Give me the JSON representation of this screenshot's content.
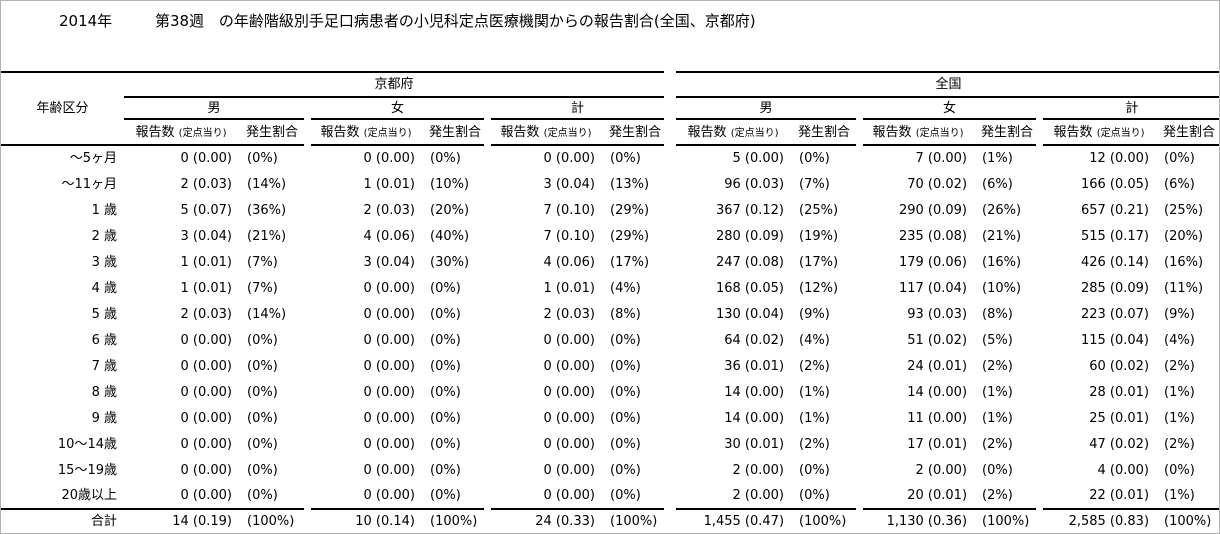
{
  "chart_data": {
    "type": "table",
    "title": "2014年 第38週 の年齢階級別手足口病患者の小児科定点医療機関からの報告割合(全国、京都府)",
    "title_parts": {
      "year": "2014年",
      "week": "第38週",
      "description": "の年齢階級別手足口病患者の小児科定点医療機関からの報告割合(全国、京都府)"
    },
    "age_column_header": "年齢区分",
    "region_headers": [
      "京都府",
      "全国"
    ],
    "gender_headers": [
      "男",
      "女",
      "計"
    ],
    "subcol_count_label": "報告数",
    "subcol_count_note": "(定点当り)",
    "subcol_ratio_label": "発生割合",
    "group_order": [
      "京都府-男",
      "京都府-女",
      "京都府-計",
      "全国-男",
      "全国-女",
      "全国-計"
    ],
    "rows": [
      {
        "age": "～5ヶ月",
        "cells": [
          [
            "0 (0.00)",
            "(0%)"
          ],
          [
            "0 (0.00)",
            "(0%)"
          ],
          [
            "0 (0.00)",
            "(0%)"
          ],
          [
            "5 (0.00)",
            "(0%)"
          ],
          [
            "7 (0.00)",
            "(1%)"
          ],
          [
            "12 (0.00)",
            "(0%)"
          ]
        ]
      },
      {
        "age": "～11ヶ月",
        "cells": [
          [
            "2 (0.03)",
            "(14%)"
          ],
          [
            "1 (0.01)",
            "(10%)"
          ],
          [
            "3 (0.04)",
            "(13%)"
          ],
          [
            "96 (0.03)",
            "(7%)"
          ],
          [
            "70 (0.02)",
            "(6%)"
          ],
          [
            "166 (0.05)",
            "(6%)"
          ]
        ]
      },
      {
        "age": "1 歳",
        "cells": [
          [
            "5 (0.07)",
            "(36%)"
          ],
          [
            "2 (0.03)",
            "(20%)"
          ],
          [
            "7 (0.10)",
            "(29%)"
          ],
          [
            "367 (0.12)",
            "(25%)"
          ],
          [
            "290 (0.09)",
            "(26%)"
          ],
          [
            "657 (0.21)",
            "(25%)"
          ]
        ]
      },
      {
        "age": "2 歳",
        "cells": [
          [
            "3 (0.04)",
            "(21%)"
          ],
          [
            "4 (0.06)",
            "(40%)"
          ],
          [
            "7 (0.10)",
            "(29%)"
          ],
          [
            "280 (0.09)",
            "(19%)"
          ],
          [
            "235 (0.08)",
            "(21%)"
          ],
          [
            "515 (0.17)",
            "(20%)"
          ]
        ]
      },
      {
        "age": "3 歳",
        "cells": [
          [
            "1 (0.01)",
            "(7%)"
          ],
          [
            "3 (0.04)",
            "(30%)"
          ],
          [
            "4 (0.06)",
            "(17%)"
          ],
          [
            "247 (0.08)",
            "(17%)"
          ],
          [
            "179 (0.06)",
            "(16%)"
          ],
          [
            "426 (0.14)",
            "(16%)"
          ]
        ]
      },
      {
        "age": "4 歳",
        "cells": [
          [
            "1 (0.01)",
            "(7%)"
          ],
          [
            "0 (0.00)",
            "(0%)"
          ],
          [
            "1 (0.01)",
            "(4%)"
          ],
          [
            "168 (0.05)",
            "(12%)"
          ],
          [
            "117 (0.04)",
            "(10%)"
          ],
          [
            "285 (0.09)",
            "(11%)"
          ]
        ]
      },
      {
        "age": "5 歳",
        "cells": [
          [
            "2 (0.03)",
            "(14%)"
          ],
          [
            "0 (0.00)",
            "(0%)"
          ],
          [
            "2 (0.03)",
            "(8%)"
          ],
          [
            "130 (0.04)",
            "(9%)"
          ],
          [
            "93 (0.03)",
            "(8%)"
          ],
          [
            "223 (0.07)",
            "(9%)"
          ]
        ]
      },
      {
        "age": "6 歳",
        "cells": [
          [
            "0 (0.00)",
            "(0%)"
          ],
          [
            "0 (0.00)",
            "(0%)"
          ],
          [
            "0 (0.00)",
            "(0%)"
          ],
          [
            "64 (0.02)",
            "(4%)"
          ],
          [
            "51 (0.02)",
            "(5%)"
          ],
          [
            "115 (0.04)",
            "(4%)"
          ]
        ]
      },
      {
        "age": "7 歳",
        "cells": [
          [
            "0 (0.00)",
            "(0%)"
          ],
          [
            "0 (0.00)",
            "(0%)"
          ],
          [
            "0 (0.00)",
            "(0%)"
          ],
          [
            "36 (0.01)",
            "(2%)"
          ],
          [
            "24 (0.01)",
            "(2%)"
          ],
          [
            "60 (0.02)",
            "(2%)"
          ]
        ]
      },
      {
        "age": "8 歳",
        "cells": [
          [
            "0 (0.00)",
            "(0%)"
          ],
          [
            "0 (0.00)",
            "(0%)"
          ],
          [
            "0 (0.00)",
            "(0%)"
          ],
          [
            "14 (0.00)",
            "(1%)"
          ],
          [
            "14 (0.00)",
            "(1%)"
          ],
          [
            "28 (0.01)",
            "(1%)"
          ]
        ]
      },
      {
        "age": "9 歳",
        "cells": [
          [
            "0 (0.00)",
            "(0%)"
          ],
          [
            "0 (0.00)",
            "(0%)"
          ],
          [
            "0 (0.00)",
            "(0%)"
          ],
          [
            "14 (0.00)",
            "(1%)"
          ],
          [
            "11 (0.00)",
            "(1%)"
          ],
          [
            "25 (0.01)",
            "(1%)"
          ]
        ]
      },
      {
        "age": "10～14歳",
        "cells": [
          [
            "0 (0.00)",
            "(0%)"
          ],
          [
            "0 (0.00)",
            "(0%)"
          ],
          [
            "0 (0.00)",
            "(0%)"
          ],
          [
            "30 (0.01)",
            "(2%)"
          ],
          [
            "17 (0.01)",
            "(2%)"
          ],
          [
            "47 (0.02)",
            "(2%)"
          ]
        ]
      },
      {
        "age": "15～19歳",
        "cells": [
          [
            "0 (0.00)",
            "(0%)"
          ],
          [
            "0 (0.00)",
            "(0%)"
          ],
          [
            "0 (0.00)",
            "(0%)"
          ],
          [
            "2 (0.00)",
            "(0%)"
          ],
          [
            "2 (0.00)",
            "(0%)"
          ],
          [
            "4 (0.00)",
            "(0%)"
          ]
        ]
      },
      {
        "age": "20歳以上",
        "cells": [
          [
            "0 (0.00)",
            "(0%)"
          ],
          [
            "0 (0.00)",
            "(0%)"
          ],
          [
            "0 (0.00)",
            "(0%)"
          ],
          [
            "2 (0.00)",
            "(0%)"
          ],
          [
            "20 (0.01)",
            "(2%)"
          ],
          [
            "22 (0.01)",
            "(1%)"
          ]
        ]
      }
    ],
    "total": {
      "age": "合計",
      "cells": [
        [
          "14 (0.19)",
          "(100%)"
        ],
        [
          "10 (0.14)",
          "(100%)"
        ],
        [
          "24 (0.33)",
          "(100%)"
        ],
        [
          "1,455 (0.47)",
          "(100%)"
        ],
        [
          "1,130 (0.36)",
          "(100%)"
        ],
        [
          "2,585 (0.83)",
          "(100%)"
        ]
      ]
    }
  }
}
